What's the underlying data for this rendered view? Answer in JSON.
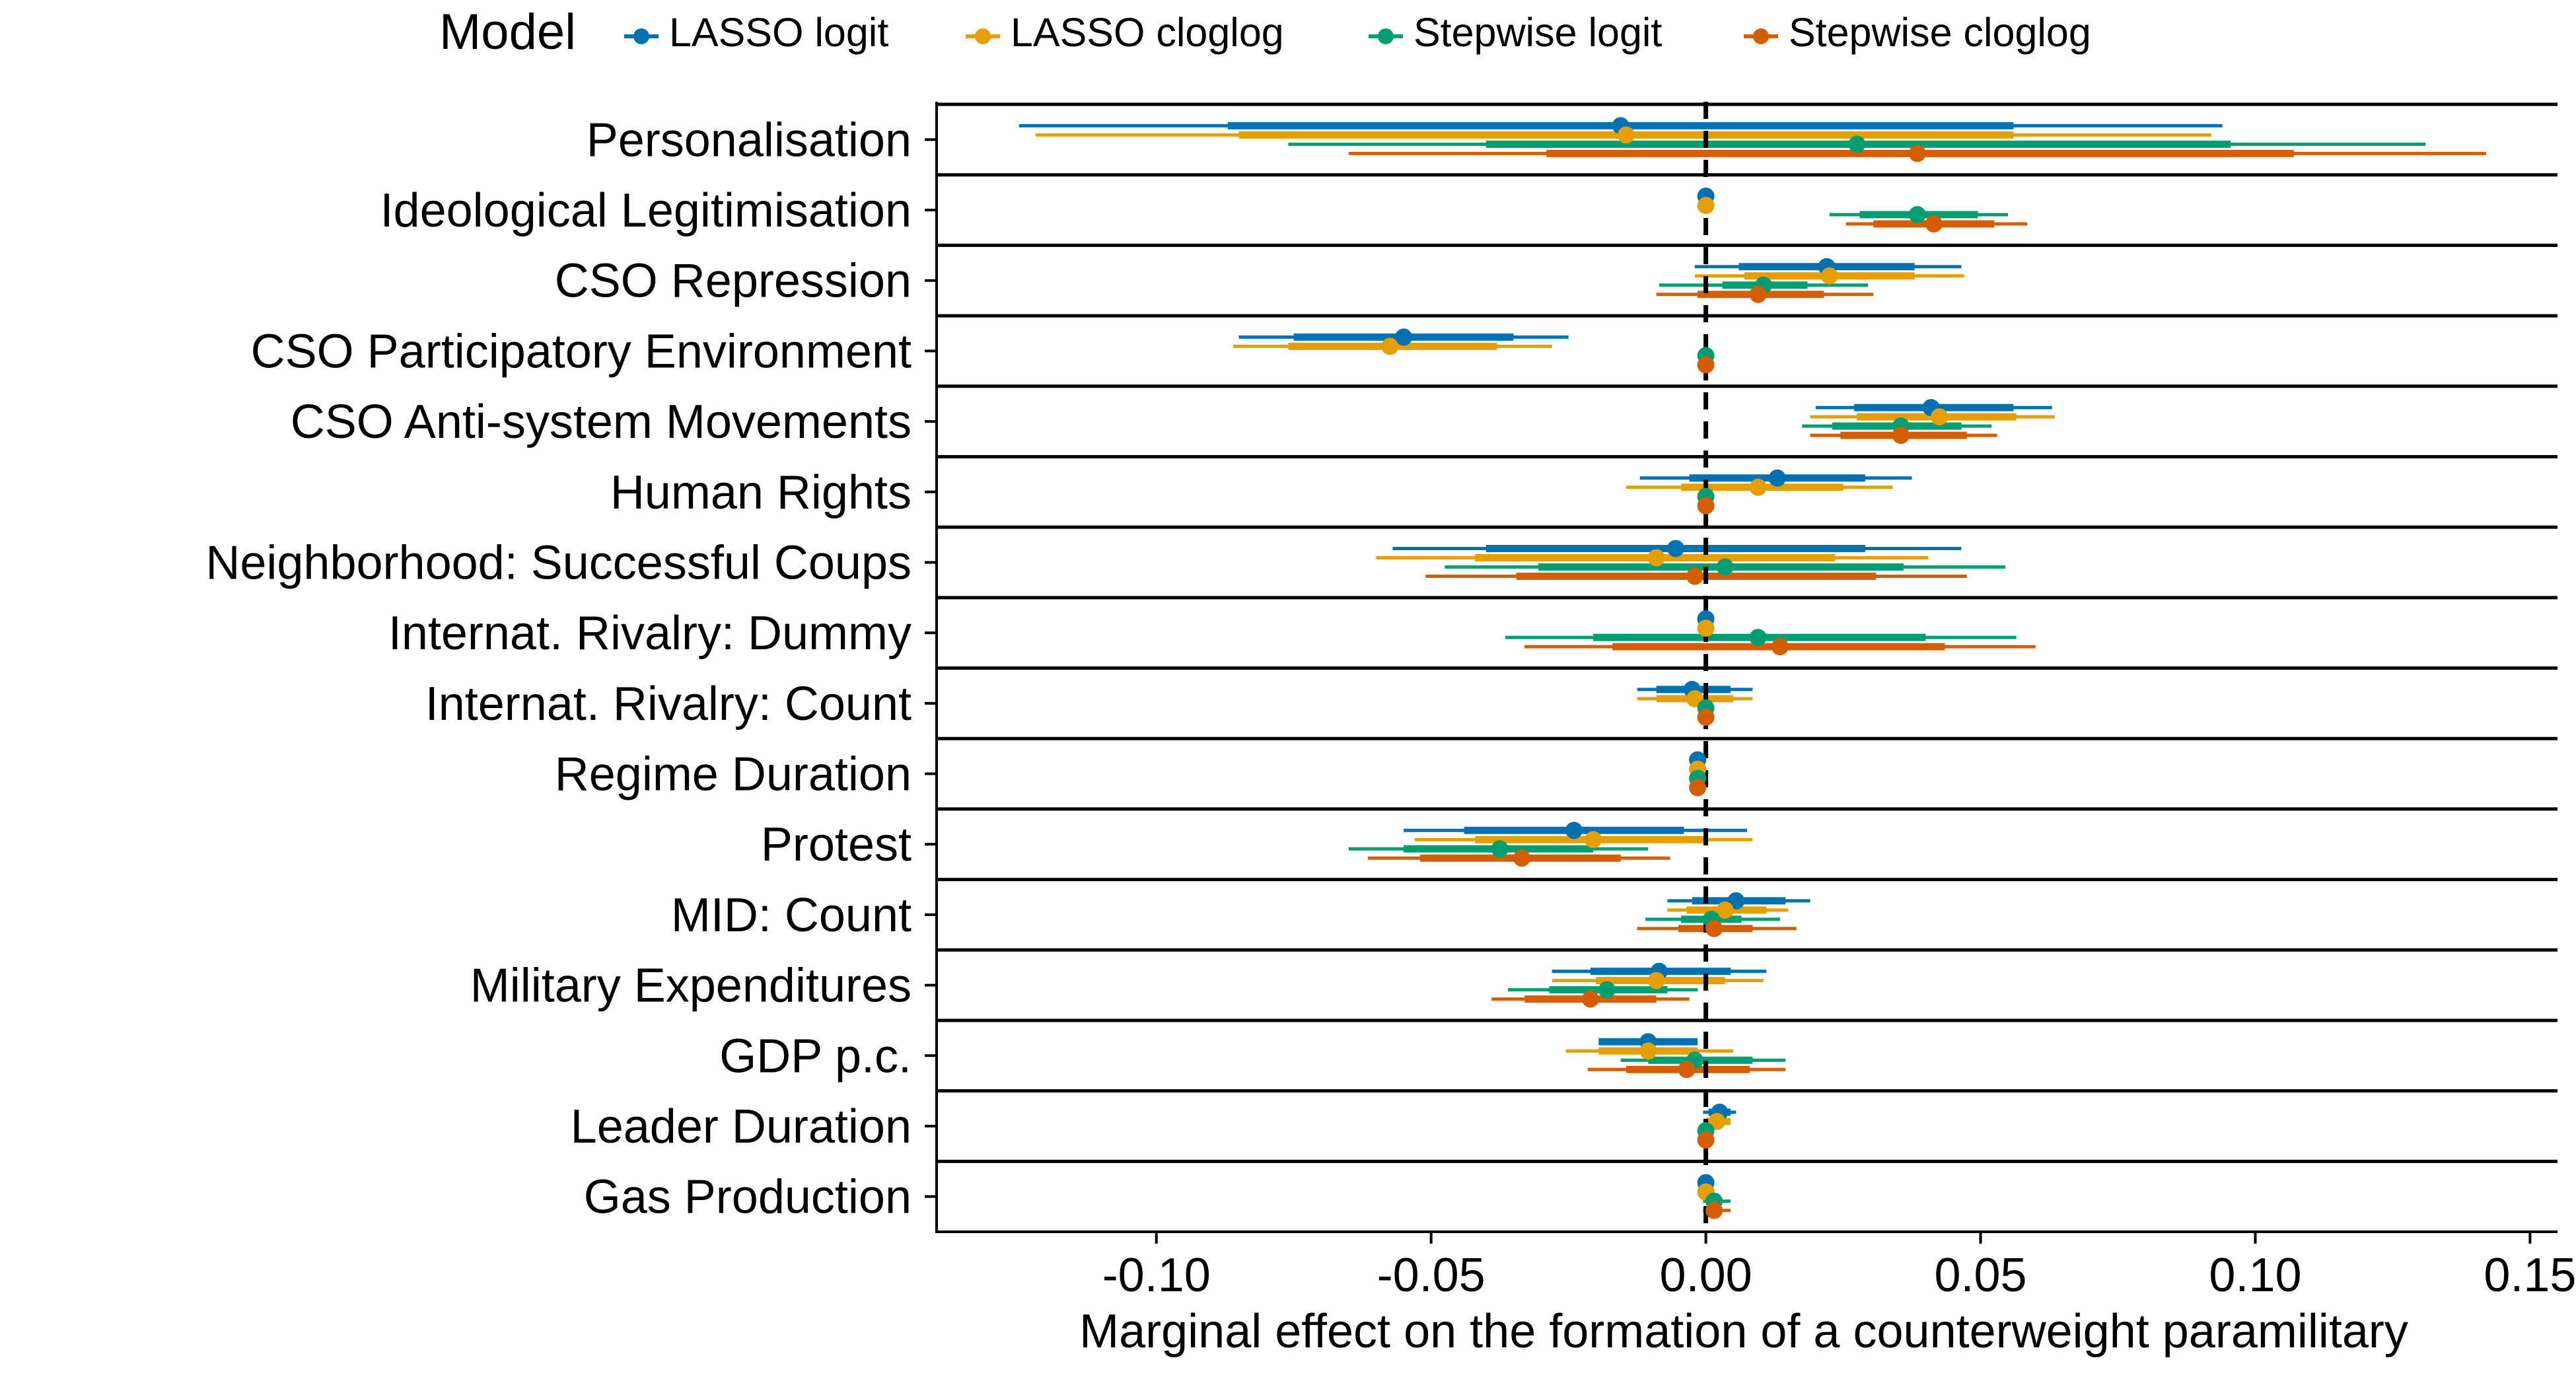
{
  "chart_data": {
    "type": "coefficient_plot",
    "xlabel": "Marginal effect on the formation of a counterweight paramilitary",
    "xlim": [
      -0.14,
      0.155
    ],
    "xticks": [
      -0.1,
      -0.05,
      0.0,
      0.05,
      0.1,
      0.15
    ],
    "xtick_labels": [
      "-0.10",
      "-0.05",
      "0.00",
      "0.05",
      "0.10",
      "0.15"
    ],
    "reference_line": 0,
    "legend": {
      "title": "Model",
      "position": "top",
      "entries": [
        {
          "name": "LASSO logit",
          "color": "#0072B2"
        },
        {
          "name": "LASSO cloglog",
          "color": "#E69F00"
        },
        {
          "name": "Stepwise logit",
          "color": "#009E73"
        },
        {
          "name": "Stepwise cloglog",
          "color": "#D55E00"
        }
      ]
    },
    "categories": [
      "Personalisation",
      "Ideological Legitimisation",
      "CSO Repression",
      "CSO Participatory Environment",
      "CSO Anti-system Movements",
      "Human Rights",
      "Neighborhood: Successful Coups",
      "Internat. Rivalry: Dummy",
      "Internat. Rivalry: Count",
      "Regime Duration",
      "Protest",
      "MID: Count",
      "Military Expenditures",
      "GDP p.c.",
      "Leader Duration",
      "Gas Production"
    ],
    "series": [
      {
        "name": "LASSO logit",
        "color": "#0072B2",
        "estimates": [
          -0.0155,
          0.0,
          0.022,
          -0.055,
          0.041,
          0.013,
          -0.0055,
          0.0,
          -0.0025,
          -0.0015,
          -0.024,
          0.0055,
          -0.0085,
          -0.0105,
          0.0025,
          0.0
        ],
        "inner": [
          [
            -0.087,
            0.056
          ],
          [
            0.0,
            0.0
          ],
          [
            0.006,
            0.038
          ],
          [
            -0.075,
            -0.035
          ],
          [
            0.027,
            0.056
          ],
          [
            -0.003,
            0.029
          ],
          [
            -0.04,
            0.029
          ],
          [
            0.0,
            0.0
          ],
          [
            -0.009,
            0.0045
          ],
          [
            -0.0025,
            -0.0005
          ],
          [
            -0.044,
            -0.004
          ],
          [
            -0.0025,
            0.0145
          ],
          [
            -0.021,
            0.0045
          ],
          [
            -0.0195,
            -0.0015
          ],
          [
            0.0005,
            0.0045
          ],
          [
            -0.0005,
            0.0005
          ]
        ],
        "outer": [
          [
            -0.125,
            0.094
          ],
          [
            0.0,
            0.0
          ],
          [
            -0.002,
            0.0465
          ],
          [
            -0.085,
            -0.025
          ],
          [
            0.02,
            0.063
          ],
          [
            -0.012,
            0.0375
          ],
          [
            -0.057,
            0.0465
          ],
          [
            0.0,
            0.0
          ],
          [
            -0.0125,
            0.0085
          ],
          [
            -0.003,
            0.0
          ],
          [
            -0.055,
            0.0075
          ],
          [
            -0.007,
            0.019
          ],
          [
            -0.028,
            0.011
          ],
          [
            -0.0195,
            -0.0015
          ],
          [
            -0.0005,
            0.0055
          ],
          [
            -0.001,
            0.001
          ]
        ]
      },
      {
        "name": "LASSO cloglog",
        "color": "#E69F00",
        "estimates": [
          -0.0145,
          0.0,
          0.0225,
          -0.0575,
          0.0425,
          0.0095,
          -0.009,
          0.0,
          -0.002,
          -0.0015,
          -0.0205,
          0.0035,
          -0.009,
          -0.0105,
          0.002,
          0.0
        ],
        "inner": [
          [
            -0.085,
            0.056
          ],
          [
            0.0,
            0.0
          ],
          [
            0.007,
            0.038
          ],
          [
            -0.076,
            -0.038
          ],
          [
            0.0275,
            0.0565
          ],
          [
            -0.0045,
            0.025
          ],
          [
            -0.042,
            0.0235
          ],
          [
            0.0,
            0.0
          ],
          [
            -0.009,
            0.005
          ],
          [
            -0.0025,
            -0.0005
          ],
          [
            -0.042,
            0.0
          ],
          [
            -0.0035,
            0.011
          ],
          [
            -0.02,
            0.0035
          ],
          [
            -0.0195,
            -0.0015
          ],
          [
            0.0,
            0.0045
          ],
          [
            -0.0005,
            0.0005
          ]
        ],
        "outer": [
          [
            -0.122,
            0.092
          ],
          [
            0.0,
            0.0
          ],
          [
            -0.002,
            0.047
          ],
          [
            -0.086,
            -0.028
          ],
          [
            0.019,
            0.0635
          ],
          [
            -0.0145,
            0.034
          ],
          [
            -0.06,
            0.0405
          ],
          [
            0.0,
            0.0
          ],
          [
            -0.0125,
            0.0085
          ],
          [
            -0.003,
            0.0
          ],
          [
            -0.053,
            0.0085
          ],
          [
            -0.007,
            0.015
          ],
          [
            -0.028,
            0.0105
          ],
          [
            -0.0255,
            0.005
          ],
          [
            -0.0005,
            0.0045
          ],
          [
            -0.001,
            0.001
          ]
        ]
      },
      {
        "name": "Stepwise logit",
        "color": "#009E73",
        "estimates": [
          0.0275,
          0.0385,
          0.0105,
          0.0,
          0.0355,
          0.0,
          0.0035,
          0.0095,
          0.0,
          -0.0015,
          -0.0375,
          0.001,
          -0.018,
          -0.002,
          0.0,
          0.0015
        ],
        "inner": [
          [
            -0.04,
            0.0955
          ],
          [
            0.028,
            0.0495
          ],
          [
            0.003,
            0.0185
          ],
          [
            0.0,
            0.0
          ],
          [
            0.023,
            0.0465
          ],
          [
            0.0,
            0.0
          ],
          [
            -0.0305,
            0.036
          ],
          [
            -0.0205,
            0.04
          ],
          [
            0.0,
            0.0
          ],
          [
            -0.0025,
            -0.0005
          ],
          [
            -0.055,
            -0.0205
          ],
          [
            -0.0045,
            0.0065
          ],
          [
            -0.0285,
            -0.007
          ],
          [
            -0.0105,
            0.0085
          ],
          [
            -0.0005,
            0.0005
          ],
          [
            0.0,
            0.003
          ]
        ],
        "outer": [
          [
            -0.076,
            0.131
          ],
          [
            0.0225,
            0.055
          ],
          [
            -0.0085,
            0.0295
          ],
          [
            0.0,
            0.0
          ],
          [
            0.0175,
            0.052
          ],
          [
            0.0,
            0.0
          ],
          [
            -0.0475,
            0.0545
          ],
          [
            -0.0365,
            0.0565
          ],
          [
            0.0,
            0.0
          ],
          [
            -0.003,
            0.0
          ],
          [
            -0.065,
            -0.0105
          ],
          [
            -0.011,
            0.0135
          ],
          [
            -0.036,
            -0.0015
          ],
          [
            -0.0155,
            0.0145
          ],
          [
            -0.001,
            0.001
          ],
          [
            -0.0005,
            0.0045
          ]
        ]
      },
      {
        "name": "Stepwise cloglog",
        "color": "#D55E00",
        "estimates": [
          0.0385,
          0.0415,
          0.0095,
          0.0,
          0.0355,
          0.0,
          -0.002,
          0.0135,
          0.0,
          -0.0015,
          -0.0335,
          0.0015,
          -0.021,
          -0.0035,
          0.0,
          0.0015
        ],
        "inner": [
          [
            -0.029,
            0.107
          ],
          [
            0.0305,
            0.0525
          ],
          [
            -0.0015,
            0.0215
          ],
          [
            0.0,
            0.0
          ],
          [
            0.0245,
            0.0475
          ],
          [
            0.0,
            0.0
          ],
          [
            -0.0345,
            0.031
          ],
          [
            -0.017,
            0.0435
          ],
          [
            0.0,
            0.0
          ],
          [
            -0.0025,
            -0.0005
          ],
          [
            -0.052,
            -0.0155
          ],
          [
            -0.005,
            0.0085
          ],
          [
            -0.033,
            -0.009
          ],
          [
            -0.0145,
            0.008
          ],
          [
            -0.0005,
            0.0005
          ],
          [
            0.0,
            0.003
          ]
        ],
        "outer": [
          [
            -0.065,
            0.142
          ],
          [
            0.0255,
            0.0585
          ],
          [
            -0.009,
            0.0305
          ],
          [
            0.0,
            0.0
          ],
          [
            0.019,
            0.053
          ],
          [
            0.0,
            0.0
          ],
          [
            -0.051,
            0.0475
          ],
          [
            -0.033,
            0.06
          ],
          [
            0.0,
            0.0
          ],
          [
            -0.003,
            0.0
          ],
          [
            -0.0615,
            -0.0065
          ],
          [
            -0.0125,
            0.0165
          ],
          [
            -0.039,
            -0.003
          ],
          [
            -0.0215,
            0.0145
          ],
          [
            -0.001,
            0.001
          ],
          [
            -0.0005,
            0.0045
          ]
        ]
      }
    ]
  }
}
